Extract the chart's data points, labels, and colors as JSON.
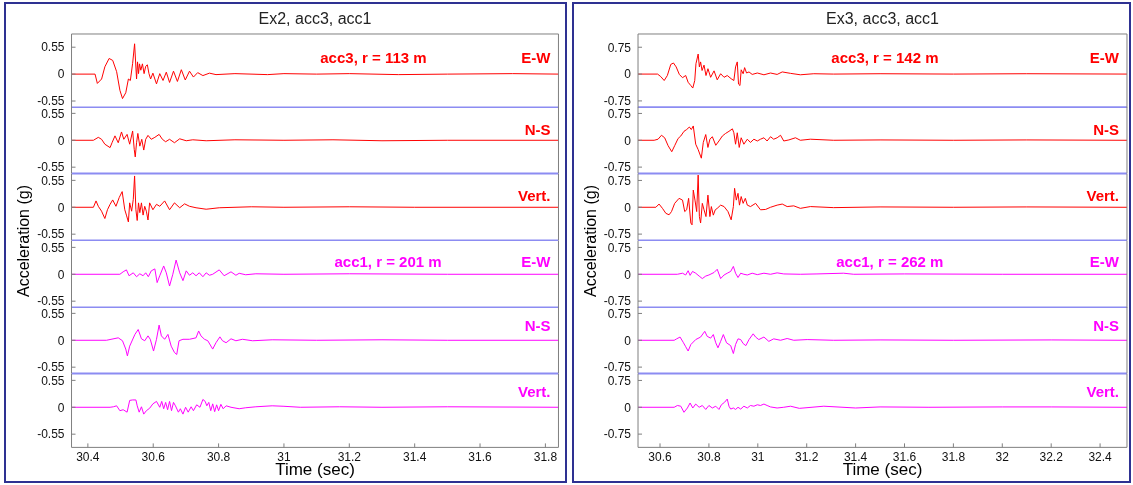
{
  "chart_data": [
    {
      "type": "line",
      "title": "Ex2, acc3, acc1",
      "annotations": [
        "acc3, r = 113 m",
        "E-W"
      ],
      "xlim": [
        30.35,
        31.84
      ],
      "xticks": [
        30.4,
        30.6,
        30.8,
        31,
        31.2,
        31.4,
        31.6,
        31.8
      ],
      "ylim": [
        -0.68,
        0.82
      ],
      "yticks": [
        -0.55,
        0,
        0.55
      ],
      "tick_labels": "y",
      "x": [
        30.35,
        30.422,
        30.429,
        30.442,
        30.452,
        30.465,
        30.476,
        30.488,
        30.498,
        30.506,
        30.516,
        30.524,
        30.53,
        30.537,
        30.543,
        30.549,
        30.552,
        30.555,
        30.558,
        30.562,
        30.567,
        30.572,
        30.577,
        30.582,
        30.587,
        30.592,
        30.599,
        30.61,
        30.62,
        30.63,
        30.64,
        30.65,
        30.662,
        30.674,
        30.686,
        30.698,
        30.711,
        30.723,
        30.736,
        30.752,
        30.772,
        30.792,
        30.85,
        30.95,
        31.0,
        31.1,
        31.2,
        31.35,
        31.5,
        31.7,
        31.84
      ],
      "series": [
        {
          "color": "#ff0000",
          "values": [
            0,
            0,
            -0.19,
            -0.1,
            0.15,
            0.32,
            0.28,
            0.05,
            -0.33,
            -0.5,
            -0.38,
            -0.1,
            -0.13,
            0.22,
            0.62,
            -0.1,
            0.25,
            0.01,
            0.21,
            0.08,
            0.21,
            0.01,
            0.16,
            0.19,
            0.01,
            -0.1,
            0.02,
            -0.2,
            0.01,
            -0.13,
            0.04,
            -0.17,
            0.06,
            -0.15,
            0.09,
            -0.12,
            0.06,
            -0.06,
            0.03,
            -0.03,
            0.02,
            -0.01,
            0.01,
            -0.01,
            0.01,
            0,
            0.01,
            -0.01,
            0,
            0.01,
            0
          ]
        }
      ]
    },
    {
      "type": "line",
      "annotations": [
        "N-S"
      ],
      "xlim": [
        30.35,
        31.84
      ],
      "xticks": [
        30.4,
        30.6,
        30.8,
        31,
        31.2,
        31.4,
        31.6,
        31.8
      ],
      "ylim": [
        -0.68,
        0.68
      ],
      "yticks": [
        -0.55,
        0,
        0.55
      ],
      "tick_labels": "y",
      "x": [
        30.35,
        30.417,
        30.432,
        30.442,
        30.452,
        30.468,
        30.474,
        30.483,
        30.493,
        30.503,
        30.51,
        30.52,
        30.528,
        30.537,
        30.542,
        30.545,
        30.549,
        30.553,
        30.559,
        30.565,
        30.571,
        30.577,
        30.584,
        30.594,
        30.605,
        30.618,
        30.628,
        30.638,
        30.65,
        30.665,
        30.681,
        30.701,
        30.721,
        30.762,
        30.85,
        31.0,
        31.15,
        31.3,
        31.5,
        31.84
      ],
      "series": [
        {
          "color": "#ff0000",
          "values": [
            0,
            0,
            0.06,
            0.02,
            -0.08,
            -0.15,
            -0.05,
            0.09,
            -0.05,
            0.17,
            0.02,
            0.12,
            -0.08,
            0.19,
            -0.19,
            -0.34,
            -0.05,
            0.14,
            -0.12,
            0.02,
            -0.2,
            0.02,
            0.1,
            0.02,
            0.06,
            0.12,
            0.02,
            -0.03,
            0.02,
            -0.05,
            0.03,
            -0.01,
            0.01,
            -0.01,
            0.01,
            0,
            0.01,
            -0.01,
            0,
            0
          ]
        }
      ]
    },
    {
      "type": "line",
      "annotations": [
        "Vert."
      ],
      "xlim": [
        30.35,
        31.84
      ],
      "xticks": [
        30.4,
        30.6,
        30.8,
        31,
        31.2,
        31.4,
        31.6,
        31.8
      ],
      "ylim": [
        -0.68,
        0.68
      ],
      "yticks": [
        -0.55,
        0,
        0.55
      ],
      "tick_labels": "y",
      "x": [
        30.35,
        30.417,
        30.425,
        30.432,
        30.442,
        30.452,
        30.46,
        30.468,
        30.476,
        30.486,
        30.496,
        30.505,
        30.513,
        30.518,
        30.524,
        30.528,
        30.534,
        30.539,
        30.543,
        30.547,
        30.551,
        30.555,
        30.559,
        30.564,
        30.569,
        30.574,
        30.579,
        30.584,
        30.589,
        30.599,
        30.61,
        30.62,
        30.635,
        30.65,
        30.665,
        30.681,
        30.696,
        30.711,
        30.731,
        30.762,
        30.802,
        30.9,
        31.0,
        31.2,
        31.4,
        31.84
      ],
      "series": [
        {
          "color": "#ff0000",
          "values": [
            0,
            0,
            0.13,
            0.02,
            -0.08,
            -0.23,
            -0.05,
            0.06,
            0.15,
            0.02,
            0.2,
            0.32,
            -0.05,
            -0.16,
            -0.3,
            0.09,
            -0.08,
            0.16,
            0.64,
            -0.05,
            -0.27,
            0.09,
            -0.11,
            0.09,
            -0.16,
            0.02,
            -0.08,
            -0.26,
            0.09,
            -0.05,
            0.06,
            0.02,
            0.13,
            -0.05,
            0.09,
            -0.01,
            0.07,
            0.02,
            -0.01,
            -0.04,
            -0.01,
            0.01,
            0,
            0.01,
            0,
            0
          ]
        }
      ]
    },
    {
      "type": "line",
      "ylabel": "Acceleration (g)",
      "annotations": [
        "acc1, r = 201 m",
        "E-W"
      ],
      "xlim": [
        30.35,
        31.84
      ],
      "xticks": [
        30.4,
        30.6,
        30.8,
        31,
        31.2,
        31.4,
        31.6,
        31.8
      ],
      "ylim": [
        -0.68,
        0.68
      ],
      "yticks": [
        -0.55,
        0,
        0.55
      ],
      "tick_labels": "y",
      "x": [
        30.35,
        30.498,
        30.508,
        30.518,
        30.526,
        30.539,
        30.549,
        30.559,
        30.569,
        30.577,
        30.585,
        30.594,
        30.605,
        30.612,
        30.62,
        30.632,
        30.64,
        30.65,
        30.66,
        30.67,
        30.681,
        30.691,
        30.701,
        30.711,
        30.721,
        30.731,
        30.741,
        30.752,
        30.762,
        30.772,
        30.782,
        30.802,
        30.817,
        30.838,
        30.853,
        30.863,
        30.883,
        30.914,
        31.0,
        31.2,
        31.5,
        31.84
      ],
      "series": [
        {
          "color": "#ff00ff",
          "values": [
            0,
            0,
            0.05,
            0.09,
            -0.03,
            0.03,
            -0.05,
            0.01,
            -0.03,
            0.03,
            -0.05,
            0.07,
            0.11,
            -0.17,
            -0.03,
            0.17,
            0.03,
            -0.24,
            0,
            0.29,
            0.03,
            -0.13,
            0.07,
            -0.02,
            0.03,
            -0.03,
            0.03,
            -0.05,
            0.03,
            -0.02,
            0,
            0.09,
            -0.03,
            0.05,
            -0.02,
            0.02,
            -0.01,
            0.01,
            0,
            0.01,
            0,
            0
          ]
        }
      ]
    },
    {
      "type": "line",
      "annotations": [
        "N-S"
      ],
      "xlim": [
        30.35,
        31.84
      ],
      "xticks": [
        30.4,
        30.6,
        30.8,
        31,
        31.2,
        31.4,
        31.6,
        31.8
      ],
      "ylim": [
        -0.68,
        0.68
      ],
      "yticks": [
        -0.55,
        0,
        0.55
      ],
      "tick_labels": "y",
      "x": [
        30.35,
        30.457,
        30.493,
        30.506,
        30.516,
        30.521,
        30.528,
        30.544,
        30.554,
        30.564,
        30.574,
        30.584,
        30.591,
        30.601,
        30.61,
        30.618,
        30.625,
        30.635,
        30.645,
        30.655,
        30.665,
        30.672,
        30.679,
        30.691,
        30.711,
        30.731,
        30.739,
        30.746,
        30.757,
        30.767,
        30.782,
        30.792,
        30.804,
        30.812,
        30.823,
        30.838,
        30.853,
        30.873,
        30.904,
        30.964,
        31.1,
        31.3,
        31.5,
        31.84
      ],
      "series": [
        {
          "color": "#ff00ff",
          "values": [
            0,
            0,
            0.05,
            -0.01,
            -0.18,
            -0.32,
            -0.12,
            0.12,
            0.22,
            0.03,
            -0.01,
            0.09,
            0.02,
            -0.22,
            0.02,
            0.31,
            0.09,
            0.02,
            0.12,
            -0.12,
            -0.25,
            -0.29,
            -0.01,
            0.02,
            0.02,
            0.05,
            0.19,
            0.09,
            0.02,
            -0.01,
            -0.18,
            -0.05,
            0.07,
            -0.01,
            -0.05,
            0.03,
            -0.01,
            0.02,
            -0.01,
            0.01,
            0,
            0.01,
            0,
            0
          ]
        }
      ]
    },
    {
      "type": "line",
      "xlabel": "Time (sec)",
      "annotations": [
        "Vert."
      ],
      "xlim": [
        30.35,
        31.84
      ],
      "xticks": [
        30.4,
        30.6,
        30.8,
        31,
        31.2,
        31.4,
        31.6,
        31.8
      ],
      "ylim": [
        -0.82,
        0.68
      ],
      "yticks": [
        -0.55,
        0,
        0.55
      ],
      "x": [
        30.35,
        30.468,
        30.478,
        30.488,
        30.498,
        30.508,
        30.52,
        30.528,
        30.537,
        30.547,
        30.551,
        30.557,
        30.564,
        30.571,
        30.579,
        30.589,
        30.599,
        30.61,
        30.62,
        30.626,
        30.632,
        30.638,
        30.644,
        30.65,
        30.656,
        30.662,
        30.668,
        30.677,
        30.683,
        30.691,
        30.699,
        30.707,
        30.716,
        30.723,
        30.733,
        30.743,
        30.752,
        30.759,
        30.764,
        30.77,
        30.776,
        30.782,
        30.788,
        30.794,
        30.8,
        30.807,
        30.814,
        30.823,
        30.838,
        30.863,
        30.883,
        30.914,
        30.964,
        31.0,
        31.05,
        31.17,
        31.3,
        31.5,
        31.84
      ],
      "series": [
        {
          "color": "#ff00ff",
          "values": [
            0,
            0,
            0.01,
            0.03,
            -0.07,
            -0.05,
            -0.1,
            0.14,
            0.15,
            0.15,
            0.03,
            -0.1,
            0.01,
            -0.14,
            -0.07,
            -0.02,
            0.07,
            0.12,
            0,
            0.12,
            -0.03,
            0.1,
            -0.05,
            0.12,
            -0.07,
            0.1,
            0.03,
            -0.1,
            -0.03,
            -0.14,
            0,
            -0.1,
            0.01,
            -0.07,
            0.05,
            0,
            0.16,
            0.12,
            0.03,
            0.1,
            -0.07,
            0.07,
            -0.09,
            0.05,
            -0.07,
            0.06,
            -0.03,
            0.03,
            0,
            -0.03,
            -0.01,
            0.01,
            0.03,
            0.02,
            0,
            0.01,
            0,
            0.01,
            0
          ]
        }
      ]
    },
    {
      "type": "line",
      "title": "Ex3, acc3, acc1",
      "annotations": [
        "acc3, r = 142 m",
        "E-W"
      ],
      "xlim": [
        30.51,
        32.51
      ],
      "xticks": [
        30.6,
        30.8,
        31,
        31.2,
        31.4,
        31.6,
        31.8,
        32,
        32.2,
        32.4
      ],
      "ylim": [
        -0.93,
        1.12
      ],
      "yticks": [
        -0.75,
        0,
        0.75
      ],
      "tick_labels": "y",
      "x": [
        30.51,
        30.59,
        30.603,
        30.617,
        30.63,
        30.644,
        30.655,
        30.666,
        30.679,
        30.692,
        30.705,
        30.715,
        30.726,
        30.734,
        30.742,
        30.747,
        30.756,
        30.761,
        30.766,
        30.772,
        30.78,
        30.788,
        30.796,
        30.807,
        30.821,
        30.834,
        30.848,
        30.862,
        30.875,
        30.891,
        30.902,
        30.909,
        30.916,
        30.921,
        30.927,
        30.932,
        30.94,
        30.946,
        30.954,
        30.964,
        30.977,
        30.998,
        31.025,
        31.052,
        31.079,
        31.1,
        31.134,
        31.174,
        31.229,
        31.31,
        31.5,
        31.8,
        32.1,
        32.51
      ],
      "series": [
        {
          "color": "#ff0000",
          "values": [
            0,
            0,
            -0.07,
            -0.18,
            -0.04,
            0.27,
            0.31,
            0.2,
            -0.01,
            -0.1,
            -0.04,
            -0.23,
            -0.32,
            -0.39,
            -0.18,
            0.29,
            0.56,
            0.2,
            0.34,
            0.1,
            0.25,
            -0.04,
            0.15,
            -0.09,
            0.09,
            -0.16,
            0.01,
            -0.09,
            -0.04,
            -0.13,
            -0.18,
            0.2,
            0.34,
            -0.28,
            -0.32,
            0.12,
            0.01,
            0.18,
            0.03,
            0.06,
            -0.01,
            0.03,
            -0.02,
            0.03,
            -0.01,
            0.06,
            0.02,
            -0.02,
            0.01,
            0,
            0.01,
            0,
            0.01,
            0
          ]
        }
      ]
    },
    {
      "type": "line",
      "annotations": [
        "N-S"
      ],
      "xlim": [
        30.51,
        32.51
      ],
      "xticks": [
        30.6,
        30.8,
        31,
        31.2,
        31.4,
        31.6,
        31.8,
        32,
        32.2,
        32.4
      ],
      "ylim": [
        -0.93,
        0.93
      ],
      "yticks": [
        -0.75,
        0,
        0.75
      ],
      "tick_labels": "y",
      "x": [
        30.51,
        30.576,
        30.592,
        30.606,
        30.619,
        30.633,
        30.648,
        30.66,
        30.674,
        30.685,
        30.698,
        30.709,
        30.72,
        30.728,
        30.736,
        30.746,
        30.756,
        30.769,
        30.777,
        30.787,
        30.796,
        30.804,
        30.814,
        30.828,
        30.841,
        30.855,
        30.868,
        30.882,
        30.896,
        30.902,
        30.909,
        30.916,
        30.924,
        30.932,
        30.943,
        30.957,
        30.97,
        30.984,
        30.998,
        31.011,
        31.025,
        31.038,
        31.052,
        31.065,
        31.079,
        31.093,
        31.106,
        31.127,
        31.154,
        31.174,
        31.215,
        31.31,
        31.5,
        31.8,
        32.1,
        32.51
      ],
      "series": [
        {
          "color": "#ff0000",
          "values": [
            0,
            0,
            0.03,
            0.14,
            0.07,
            -0.15,
            -0.32,
            -0.15,
            0.05,
            0.12,
            0.25,
            0.3,
            0.37,
            0.3,
            0.4,
            -0.11,
            -0.26,
            -0.5,
            -0.06,
            0.16,
            -0.2,
            0.03,
            0.1,
            -0.14,
            -0.02,
            0.12,
            0.19,
            0.25,
            0.32,
            0.21,
            -0.11,
            0.21,
            -0.2,
            0.07,
            -0.11,
            0.03,
            -0.06,
            0.03,
            -0.02,
            0.03,
            0.07,
            -0.02,
            0.1,
            0.03,
            0.07,
            0.14,
            -0.02,
            0.01,
            0.07,
            0,
            0.03,
            0,
            0.01,
            0,
            0.01,
            0
          ]
        }
      ]
    },
    {
      "type": "line",
      "annotations": [
        "Vert."
      ],
      "xlim": [
        30.51,
        32.51
      ],
      "xticks": [
        30.6,
        30.8,
        31,
        31.2,
        31.4,
        31.6,
        31.8,
        32,
        32.2,
        32.4
      ],
      "ylim": [
        -0.93,
        0.93
      ],
      "yticks": [
        -0.75,
        0,
        0.75
      ],
      "tick_labels": "y",
      "x": [
        30.51,
        30.583,
        30.596,
        30.61,
        30.624,
        30.637,
        30.647,
        30.66,
        30.678,
        30.692,
        30.701,
        30.709,
        30.717,
        30.726,
        30.731,
        30.736,
        30.743,
        30.75,
        30.756,
        30.761,
        30.766,
        30.773,
        30.78,
        30.788,
        30.796,
        30.804,
        30.81,
        30.818,
        30.826,
        30.834,
        30.848,
        30.862,
        30.878,
        30.891,
        30.9,
        30.905,
        30.912,
        30.919,
        30.925,
        30.932,
        30.94,
        30.949,
        30.957,
        30.97,
        30.991,
        31.011,
        31.032,
        31.052,
        31.079,
        31.1,
        31.12,
        31.147,
        31.174,
        31.215,
        31.31,
        31.5,
        31.8,
        32.1,
        32.51
      ],
      "series": [
        {
          "color": "#ff0000",
          "values": [
            0,
            0,
            0.09,
            -0.03,
            -0.17,
            -0.21,
            -0.12,
            0.11,
            0.25,
            0.2,
            -0.12,
            -0.07,
            0.25,
            -0.44,
            -0.49,
            0.48,
            0.2,
            -0.12,
            0.9,
            -0.26,
            -0.44,
            0.11,
            -0.07,
            -0.26,
            0.34,
            -0.26,
            0.02,
            -0.22,
            -0.07,
            -0.03,
            0.06,
            0.02,
            -0.12,
            -0.35,
            0.02,
            0.53,
            0.2,
            0.39,
            0.06,
            0.3,
            0.11,
            0.25,
            0.06,
            0.02,
            0.11,
            -0.07,
            -0.06,
            0,
            0.06,
            0.09,
            0.02,
            0.04,
            -0.03,
            0.02,
            -0.01,
            0.01,
            0,
            0.01,
            0
          ]
        }
      ]
    },
    {
      "type": "line",
      "ylabel": "Acceleration (g)",
      "annotations": [
        "acc1, r = 262 m",
        "E-W"
      ],
      "xlim": [
        30.51,
        32.51
      ],
      "xticks": [
        30.6,
        30.8,
        31,
        31.2,
        31.4,
        31.6,
        31.8,
        32,
        32.2,
        32.4
      ],
      "ylim": [
        -0.93,
        0.93
      ],
      "yticks": [
        -0.75,
        0,
        0.75
      ],
      "tick_labels": "y",
      "x": [
        30.51,
        30.671,
        30.692,
        30.705,
        30.715,
        30.723,
        30.733,
        30.746,
        30.76,
        30.773,
        30.787,
        30.8,
        30.821,
        30.834,
        30.848,
        30.862,
        30.875,
        30.889,
        30.9,
        30.909,
        30.919,
        30.93,
        30.943,
        30.957,
        30.977,
        30.998,
        31.025,
        31.052,
        31.079,
        31.106,
        31.174,
        31.242,
        31.351,
        31.392,
        31.6,
        32.0,
        32.51
      ],
      "series": [
        {
          "color": "#ff00ff",
          "values": [
            0,
            0,
            0.03,
            -0.02,
            0.1,
            -0.03,
            0.08,
            0.03,
            -0.05,
            -0.12,
            -0.05,
            -0.02,
            0.05,
            0.14,
            -0.12,
            -0.02,
            0.03,
            0.08,
            0.22,
            0.03,
            -0.09,
            0.03,
            0,
            -0.02,
            0.03,
            -0.01,
            0.03,
            0,
            0.04,
            0.01,
            0,
            0.01,
            0.03,
            0,
            0.01,
            0,
            0
          ]
        }
      ]
    },
    {
      "type": "line",
      "annotations": [
        "N-S"
      ],
      "xlim": [
        30.51,
        32.51
      ],
      "xticks": [
        30.6,
        30.8,
        31,
        31.2,
        31.4,
        31.6,
        31.8,
        32,
        32.2,
        32.4
      ],
      "ylim": [
        -0.93,
        0.93
      ],
      "yticks": [
        -0.75,
        0,
        0.75
      ],
      "tick_labels": "y",
      "x": [
        30.51,
        30.658,
        30.668,
        30.682,
        30.696,
        30.705,
        30.715,
        30.726,
        30.746,
        30.766,
        30.783,
        30.793,
        30.807,
        30.818,
        30.828,
        30.837,
        30.848,
        30.859,
        30.872,
        30.889,
        30.9,
        30.909,
        30.919,
        30.93,
        30.94,
        30.951,
        30.964,
        30.981,
        30.991,
        31.004,
        31.025,
        31.045,
        31.065,
        31.093,
        31.12,
        31.147,
        31.202,
        31.31,
        31.5,
        31.8,
        32.2,
        32.51
      ],
      "series": [
        {
          "color": "#ff00ff",
          "values": [
            0,
            0,
            0.04,
            0.09,
            -0.07,
            -0.18,
            -0.3,
            -0.12,
            0.02,
            0.09,
            0.25,
            0.11,
            0.06,
            0.16,
            -0.07,
            -0.21,
            -0.03,
            0.16,
            -0.07,
            -0.15,
            -0.37,
            -0.12,
            0.04,
            0.02,
            -0.09,
            -0.15,
            0.02,
            0.18,
            0.09,
            0.02,
            0.09,
            -0.03,
            0.04,
            0,
            0.05,
            0,
            0.02,
            0,
            0.01,
            0,
            0.01,
            0
          ]
        }
      ]
    },
    {
      "type": "line",
      "xlabel": "Time (sec)",
      "annotations": [
        "Vert."
      ],
      "xlim": [
        30.51,
        32.51
      ],
      "xticks": [
        30.6,
        30.8,
        31,
        31.2,
        31.4,
        31.6,
        31.8,
        32,
        32.2,
        32.4
      ],
      "ylim": [
        -1.12,
        0.93
      ],
      "yticks": [
        -0.75,
        0,
        0.75
      ],
      "x": [
        30.51,
        30.658,
        30.671,
        30.685,
        30.698,
        30.712,
        30.723,
        30.734,
        30.746,
        30.76,
        30.773,
        30.787,
        30.8,
        30.814,
        30.828,
        30.841,
        30.851,
        30.864,
        30.875,
        30.882,
        30.889,
        30.9,
        30.909,
        30.919,
        30.93,
        30.943,
        30.957,
        30.97,
        30.984,
        30.998,
        31.011,
        31.025,
        31.038,
        31.052,
        31.079,
        31.106,
        31.134,
        31.17,
        31.27,
        31.4,
        31.5,
        31.7,
        32.0,
        32.2,
        32.51
      ],
      "series": [
        {
          "color": "#ff00ff",
          "values": [
            0,
            0,
            0.05,
            0.03,
            -0.14,
            -0.02,
            0.12,
            -0.02,
            0.09,
            0,
            0.05,
            -0.06,
            0.05,
            -0.02,
            0.03,
            -0.06,
            0.07,
            0.14,
            0.23,
            0.03,
            -0.05,
            -0.02,
            -0.06,
            0,
            -0.05,
            0.03,
            -0.02,
            0.05,
            0.03,
            0.07,
            0.05,
            0.09,
            0.05,
            0.01,
            -0.02,
            0,
            0.03,
            -0.03,
            0.03,
            -0.02,
            0.01,
            0,
            0.01,
            0.01,
            0
          ]
        }
      ]
    }
  ]
}
